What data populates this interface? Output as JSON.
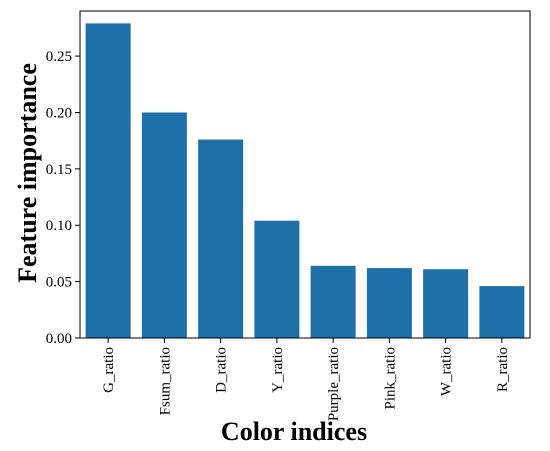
{
  "chart_data": {
    "type": "bar",
    "title": "",
    "xlabel": "Color indices",
    "ylabel": "Feature importance",
    "categories": [
      "G_ratio",
      "Fsum_ratio",
      "D_ratio",
      "Y_ratio",
      "Purple_ratio",
      "Pink_ratio",
      "W_ratio",
      "R_ratio"
    ],
    "values": [
      0.279,
      0.2,
      0.176,
      0.104,
      0.064,
      0.062,
      0.061,
      0.046
    ],
    "ylim": [
      0,
      0.29
    ],
    "yticks": [
      0.0,
      0.05,
      0.1,
      0.15,
      0.2,
      0.25
    ],
    "ytick_labels": [
      "0.00",
      "0.05",
      "0.10",
      "0.15",
      "0.20",
      "0.25"
    ],
    "grid": false,
    "legend": "none",
    "bar_color": "#1f6fa9",
    "axis_color": "#000000"
  }
}
